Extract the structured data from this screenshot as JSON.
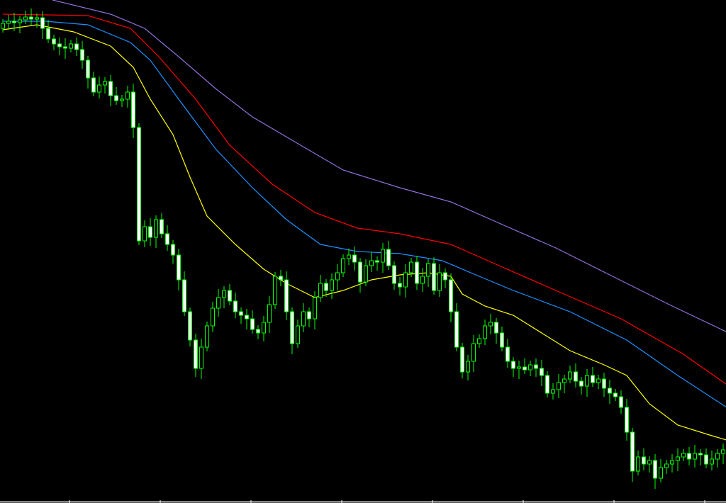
{
  "chart_data": {
    "type": "candlestick",
    "title": "",
    "xlabel": "",
    "ylabel": "",
    "grid": false,
    "ylim": [
      0,
      71
    ],
    "background": "#000000",
    "candle_color": "#00ff00",
    "bull_fill": "#000000",
    "bear_fill": "#ffffff",
    "first_open": 67.0,
    "closes": [
      67.7,
      68.0,
      67.8,
      68.2,
      68.6,
      68.3,
      68.5,
      67.0,
      65.5,
      64.8,
      64.4,
      64.2,
      64.8,
      64.0,
      62.5,
      60.0,
      58.0,
      59.0,
      59.5,
      57.5,
      56.8,
      57.0,
      58.0,
      53.0,
      37.0,
      39.0,
      37.5,
      40.0,
      38.0,
      36.5,
      35.0,
      31.5,
      27.0,
      23.0,
      19.0,
      22.0,
      25.0,
      27.5,
      29.0,
      30.0,
      28.5,
      27.0,
      26.5,
      26.0,
      24.5,
      24.0,
      25.5,
      28.0,
      32.0,
      31.5,
      27.0,
      22.5,
      25.0,
      27.0,
      26.0,
      29.0,
      31.0,
      30.0,
      31.5,
      32.5,
      34.5,
      35.0,
      34.0,
      31.2,
      33.5,
      34.2,
      34.0,
      35.8,
      33.5,
      31.0,
      30.5,
      32.5,
      34.0,
      31.0,
      32.0,
      33.8,
      30.0,
      32.5,
      31.5,
      27.0,
      22.0,
      18.5,
      20.0,
      22.5,
      23.2,
      25.0,
      25.5,
      24.0,
      22.0,
      20.0,
      19.0,
      19.2,
      18.8,
      19.5,
      19.0,
      18.0,
      15.5,
      16.0,
      17.0,
      17.5,
      18.5,
      17.2,
      16.5,
      18.0,
      17.0,
      17.5,
      16.2,
      15.5,
      15.0,
      13.5,
      10.0,
      4.5,
      6.5,
      5.5,
      6.0,
      3.5,
      5.0,
      5.5,
      6.0,
      6.5,
      7.0,
      6.2,
      7.0,
      6.8,
      5.5,
      6.2,
      7.0,
      7.5
    ],
    "moving_averages": [
      {
        "color": "#ffff00",
        "points": [
          [
            0,
            66.8
          ],
          [
            6,
            67.5
          ],
          [
            12.5,
            66.5
          ],
          [
            19,
            64.5
          ],
          [
            23,
            61.5
          ],
          [
            26,
            57
          ],
          [
            30,
            52
          ],
          [
            33,
            46
          ],
          [
            36,
            40.5
          ],
          [
            41,
            36.5
          ],
          [
            46,
            33
          ],
          [
            50,
            31
          ],
          [
            55,
            29
          ],
          [
            60,
            30
          ],
          [
            65,
            31.5
          ],
          [
            70,
            32.2
          ],
          [
            75,
            32.5
          ],
          [
            79,
            32
          ],
          [
            81,
            29.5
          ],
          [
            85,
            27.8
          ],
          [
            90,
            26.5
          ],
          [
            95,
            24
          ],
          [
            100,
            21.5
          ],
          [
            106,
            19.5
          ],
          [
            110,
            18
          ],
          [
            114,
            14
          ],
          [
            119,
            11
          ],
          [
            125,
            9.5
          ],
          [
            128,
            8.8
          ]
        ]
      },
      {
        "color": "#1e90ff",
        "points": [
          [
            0,
            68
          ],
          [
            7.5,
            68
          ],
          [
            15,
            67.5
          ],
          [
            22.5,
            65
          ],
          [
            26,
            62.5
          ],
          [
            31,
            57
          ],
          [
            37.5,
            50
          ],
          [
            44,
            44.5
          ],
          [
            50,
            40
          ],
          [
            56,
            36.5
          ],
          [
            62.5,
            35.5
          ],
          [
            70,
            35.2
          ],
          [
            77.5,
            34.2
          ],
          [
            82.5,
            32.5
          ],
          [
            90,
            30
          ],
          [
            100,
            27
          ],
          [
            110,
            23
          ],
          [
            119,
            18
          ],
          [
            128,
            13.3
          ]
        ]
      },
      {
        "color": "#ff0000",
        "points": [
          [
            0,
            69
          ],
          [
            7.5,
            68.9
          ],
          [
            15,
            68.8
          ],
          [
            22.5,
            67
          ],
          [
            27.5,
            63
          ],
          [
            34,
            57
          ],
          [
            40,
            50.5
          ],
          [
            47.5,
            45
          ],
          [
            55,
            41
          ],
          [
            62.5,
            38.8
          ],
          [
            70,
            38
          ],
          [
            79,
            36.5
          ],
          [
            87.5,
            33.5
          ],
          [
            97.5,
            30
          ],
          [
            109,
            26
          ],
          [
            120,
            21
          ],
          [
            128,
            16.5
          ]
        ]
      },
      {
        "color": "#9370db",
        "points": [
          [
            8.75,
            71
          ],
          [
            19,
            69
          ],
          [
            25,
            67
          ],
          [
            31,
            63
          ],
          [
            37.5,
            58.5
          ],
          [
            44,
            54.5
          ],
          [
            52.5,
            50.5
          ],
          [
            60,
            47
          ],
          [
            70,
            44.5
          ],
          [
            79,
            42.5
          ],
          [
            87.5,
            39.5
          ],
          [
            97.5,
            36
          ],
          [
            107.5,
            32
          ],
          [
            117.5,
            28
          ],
          [
            128,
            24
          ]
        ]
      }
    ]
  }
}
